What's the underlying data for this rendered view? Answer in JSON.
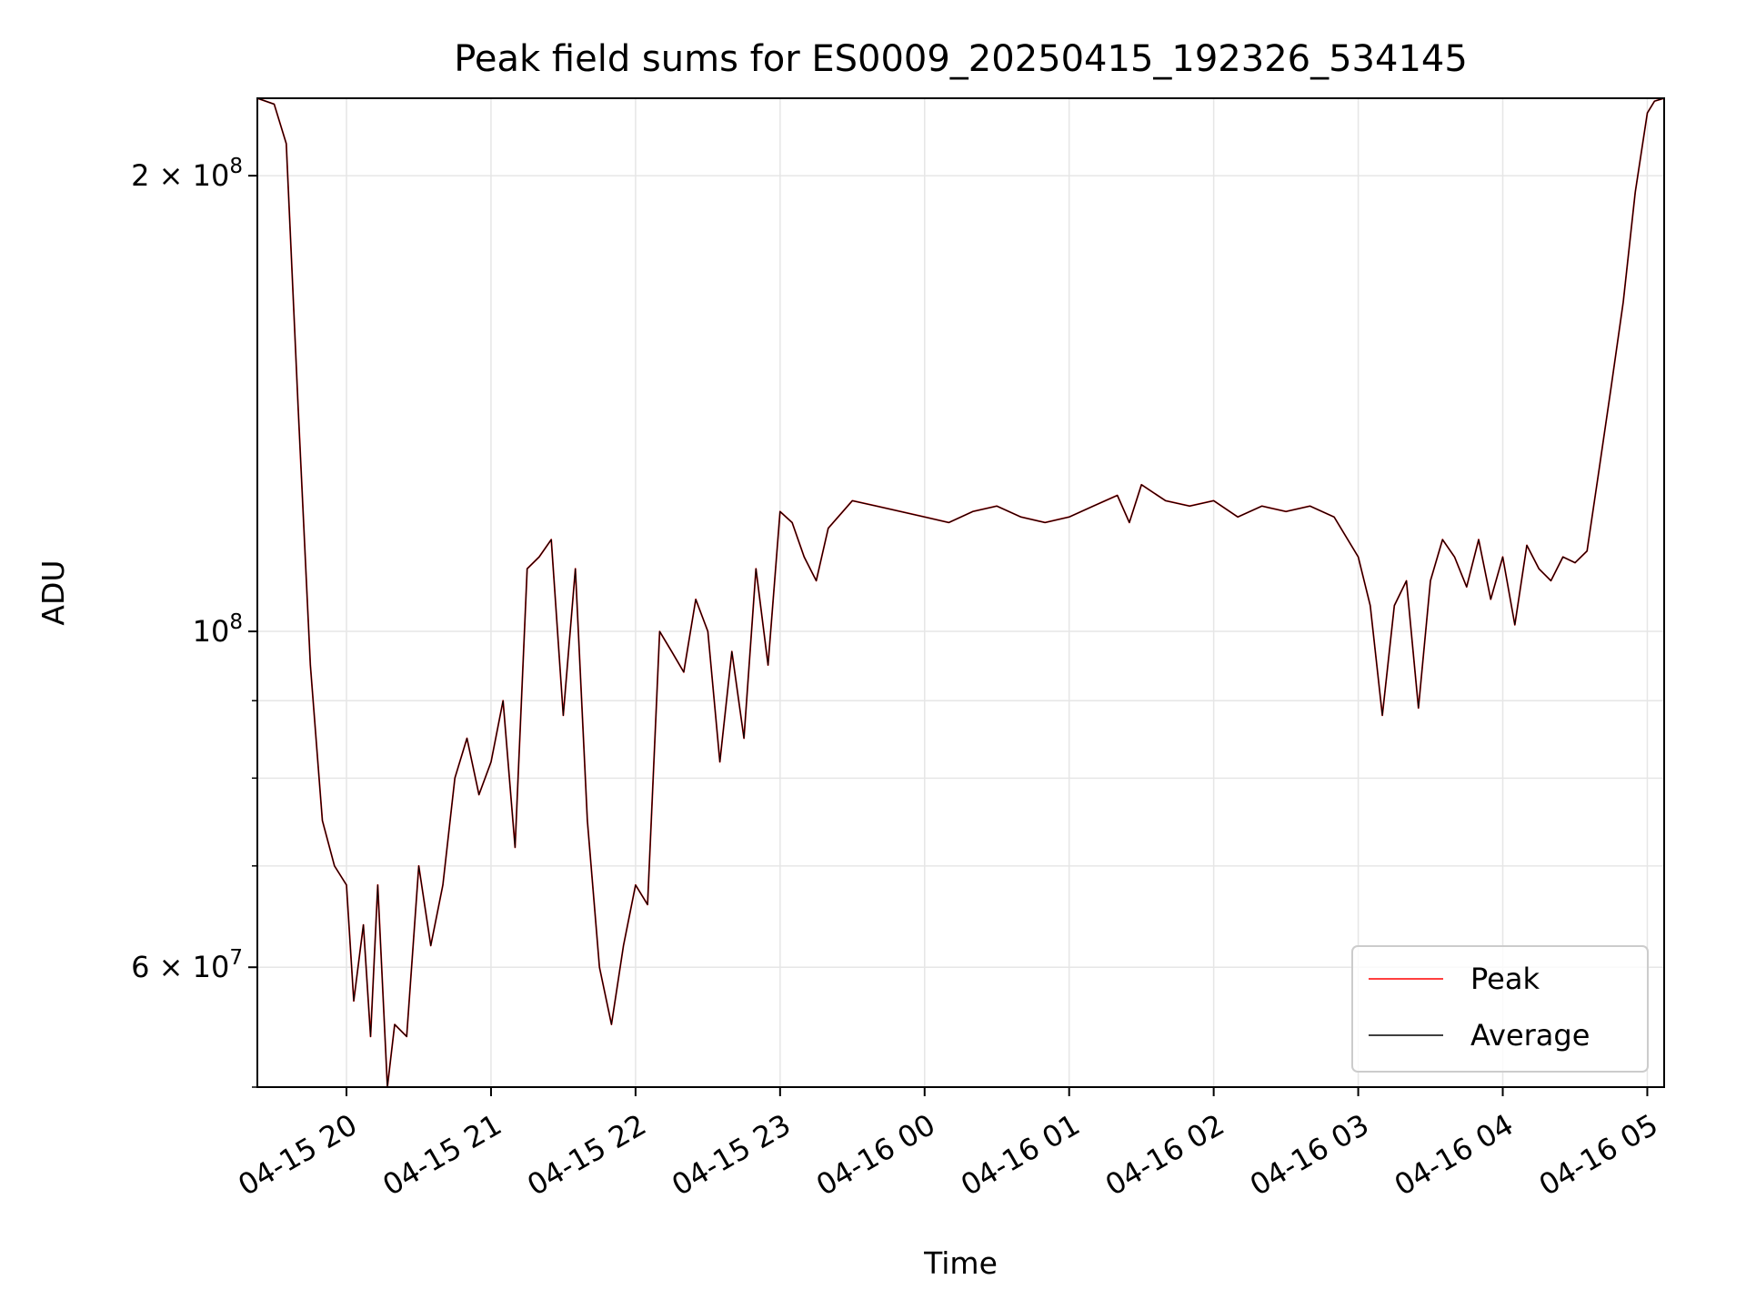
{
  "chart_data": {
    "type": "line",
    "title": "Peak field sums for ES0009_20250415_192326_534145",
    "xlabel": "Time",
    "ylabel": "ADU",
    "yscale": "log",
    "ylim": [
      50000000,
      225000000
    ],
    "xlim": [
      "2025-04-15 19:23",
      "2025-04-16 05:07"
    ],
    "grid": true,
    "legend_position": "lower right",
    "x_ticks": [
      "04-15 20",
      "04-15 21",
      "04-15 22",
      "04-15 23",
      "04-16 00",
      "04-16 01",
      "04-16 02",
      "04-16 03",
      "04-16 04",
      "04-16 05"
    ],
    "y_ticks": [
      "2 × 10^8",
      "10^8",
      "6 × 10^7"
    ],
    "x": [
      "2025-04-15 19:23",
      "2025-04-15 19:30",
      "2025-04-15 19:35",
      "2025-04-15 19:40",
      "2025-04-15 19:45",
      "2025-04-15 19:50",
      "2025-04-15 19:55",
      "2025-04-15 20:00",
      "2025-04-15 20:03",
      "2025-04-15 20:07",
      "2025-04-15 20:10",
      "2025-04-15 20:13",
      "2025-04-15 20:17",
      "2025-04-15 20:20",
      "2025-04-15 20:25",
      "2025-04-15 20:30",
      "2025-04-15 20:35",
      "2025-04-15 20:40",
      "2025-04-15 20:45",
      "2025-04-15 20:50",
      "2025-04-15 20:55",
      "2025-04-15 21:00",
      "2025-04-15 21:05",
      "2025-04-15 21:10",
      "2025-04-15 21:15",
      "2025-04-15 21:20",
      "2025-04-15 21:25",
      "2025-04-15 21:30",
      "2025-04-15 21:35",
      "2025-04-15 21:40",
      "2025-04-15 21:45",
      "2025-04-15 21:50",
      "2025-04-15 21:55",
      "2025-04-15 22:00",
      "2025-04-15 22:05",
      "2025-04-15 22:10",
      "2025-04-15 22:15",
      "2025-04-15 22:20",
      "2025-04-15 22:25",
      "2025-04-15 22:30",
      "2025-04-15 22:35",
      "2025-04-15 22:40",
      "2025-04-15 22:45",
      "2025-04-15 22:50",
      "2025-04-15 22:55",
      "2025-04-15 23:00",
      "2025-04-15 23:05",
      "2025-04-15 23:10",
      "2025-04-15 23:15",
      "2025-04-15 23:20",
      "2025-04-15 23:30",
      "2025-04-15 23:40",
      "2025-04-15 23:50",
      "2025-04-16 00:00",
      "2025-04-16 00:10",
      "2025-04-16 00:20",
      "2025-04-16 00:30",
      "2025-04-16 00:40",
      "2025-04-16 00:50",
      "2025-04-16 01:00",
      "2025-04-16 01:10",
      "2025-04-16 01:20",
      "2025-04-16 01:25",
      "2025-04-16 01:30",
      "2025-04-16 01:40",
      "2025-04-16 01:50",
      "2025-04-16 02:00",
      "2025-04-16 02:10",
      "2025-04-16 02:20",
      "2025-04-16 02:30",
      "2025-04-16 02:40",
      "2025-04-16 02:50",
      "2025-04-16 03:00",
      "2025-04-16 03:05",
      "2025-04-16 03:10",
      "2025-04-16 03:15",
      "2025-04-16 03:20",
      "2025-04-16 03:25",
      "2025-04-16 03:30",
      "2025-04-16 03:35",
      "2025-04-16 03:40",
      "2025-04-16 03:45",
      "2025-04-16 03:50",
      "2025-04-16 03:55",
      "2025-04-16 04:00",
      "2025-04-16 04:05",
      "2025-04-16 04:10",
      "2025-04-16 04:15",
      "2025-04-16 04:20",
      "2025-04-16 04:25",
      "2025-04-16 04:30",
      "2025-04-16 04:35",
      "2025-04-16 04:40",
      "2025-04-16 04:45",
      "2025-04-16 04:50",
      "2025-04-16 04:55",
      "2025-04-16 05:00",
      "2025-04-16 05:03",
      "2025-04-16 05:07"
    ],
    "series": [
      {
        "name": "Peak",
        "color": "#ff0000",
        "values": [
          225000000,
          223000000,
          210000000,
          140000000,
          95000000,
          75000000,
          70000000,
          68000000,
          57000000,
          64000000,
          54000000,
          68000000,
          50000000,
          55000000,
          54000000,
          70000000,
          62000000,
          68000000,
          80000000,
          85000000,
          78000000,
          82000000,
          90000000,
          72000000,
          110000000,
          112000000,
          115000000,
          88000000,
          110000000,
          75000000,
          60000000,
          55000000,
          62000000,
          68000000,
          66000000,
          100000000,
          97000000,
          94000000,
          105000000,
          100000000,
          82000000,
          97000000,
          85000000,
          110000000,
          95000000,
          120000000,
          118000000,
          112000000,
          108000000,
          117000000,
          122000000,
          121000000,
          120000000,
          119000000,
          118000000,
          120000000,
          121000000,
          119000000,
          118000000,
          119000000,
          121000000,
          123000000,
          118000000,
          125000000,
          122000000,
          121000000,
          122000000,
          119000000,
          121000000,
          120000000,
          121000000,
          119000000,
          112000000,
          104000000,
          88000000,
          104000000,
          108000000,
          89000000,
          108000000,
          115000000,
          112000000,
          107000000,
          115000000,
          105000000,
          112000000,
          101000000,
          114000000,
          110000000,
          108000000,
          112000000,
          111000000,
          113000000,
          128000000,
          145000000,
          165000000,
          195000000,
          220000000,
          224000000,
          225000000
        ]
      },
      {
        "name": "Average",
        "color": "#000000",
        "values": [
          225000000,
          223000000,
          210000000,
          140000000,
          95000000,
          75000000,
          70000000,
          68000000,
          57000000,
          64000000,
          54000000,
          68000000,
          50000000,
          55000000,
          54000000,
          70000000,
          62000000,
          68000000,
          80000000,
          85000000,
          78000000,
          82000000,
          90000000,
          72000000,
          110000000,
          112000000,
          115000000,
          88000000,
          110000000,
          75000000,
          60000000,
          55000000,
          62000000,
          68000000,
          66000000,
          100000000,
          97000000,
          94000000,
          105000000,
          100000000,
          82000000,
          97000000,
          85000000,
          110000000,
          95000000,
          120000000,
          118000000,
          112000000,
          108000000,
          117000000,
          122000000,
          121000000,
          120000000,
          119000000,
          118000000,
          120000000,
          121000000,
          119000000,
          118000000,
          119000000,
          121000000,
          123000000,
          118000000,
          125000000,
          122000000,
          121000000,
          122000000,
          119000000,
          121000000,
          120000000,
          121000000,
          119000000,
          112000000,
          104000000,
          88000000,
          104000000,
          108000000,
          89000000,
          108000000,
          115000000,
          112000000,
          107000000,
          115000000,
          105000000,
          112000000,
          101000000,
          114000000,
          110000000,
          108000000,
          112000000,
          111000000,
          113000000,
          128000000,
          145000000,
          165000000,
          195000000,
          220000000,
          224000000,
          225000000
        ]
      }
    ]
  }
}
